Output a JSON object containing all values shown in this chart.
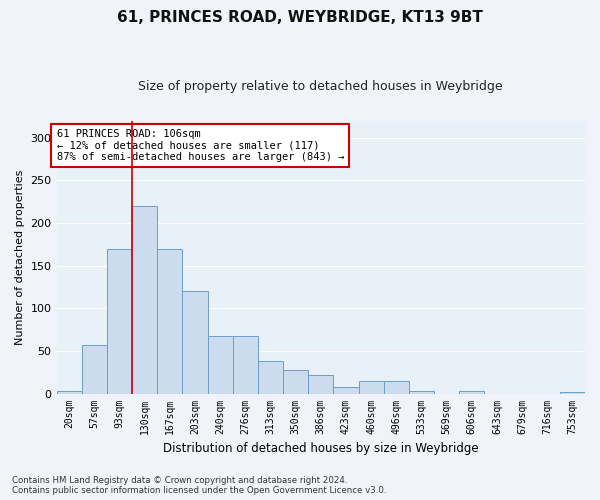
{
  "title": "61, PRINCES ROAD, WEYBRIDGE, KT13 9BT",
  "subtitle": "Size of property relative to detached houses in Weybridge",
  "xlabel": "Distribution of detached houses by size in Weybridge",
  "ylabel": "Number of detached properties",
  "bar_color": "#ccdcee",
  "bar_edge_color": "#6a9fc8",
  "background_color": "#e8f0f8",
  "annotation_text": "61 PRINCES ROAD: 106sqm\n← 12% of detached houses are smaller (117)\n87% of semi-detached houses are larger (843) →",
  "vline_x": 2.5,
  "vline_color": "#cc0000",
  "categories": [
    "20sqm",
    "57sqm",
    "93sqm",
    "130sqm",
    "167sqm",
    "203sqm",
    "240sqm",
    "276sqm",
    "313sqm",
    "350sqm",
    "386sqm",
    "423sqm",
    "460sqm",
    "496sqm",
    "533sqm",
    "569sqm",
    "606sqm",
    "643sqm",
    "679sqm",
    "716sqm",
    "753sqm"
  ],
  "values": [
    3,
    57,
    170,
    220,
    170,
    120,
    68,
    68,
    38,
    28,
    22,
    8,
    15,
    15,
    3,
    0,
    3,
    0,
    0,
    0,
    2
  ],
  "ylim": [
    0,
    320
  ],
  "yticks": [
    0,
    50,
    100,
    150,
    200,
    250,
    300
  ],
  "footer": "Contains HM Land Registry data © Crown copyright and database right 2024.\nContains public sector information licensed under the Open Government Licence v3.0.",
  "grid_color": "#ffffff",
  "ann_box_color": "#ffffff",
  "ann_box_edge": "#cc0000",
  "fig_bg": "#f0f4fa"
}
